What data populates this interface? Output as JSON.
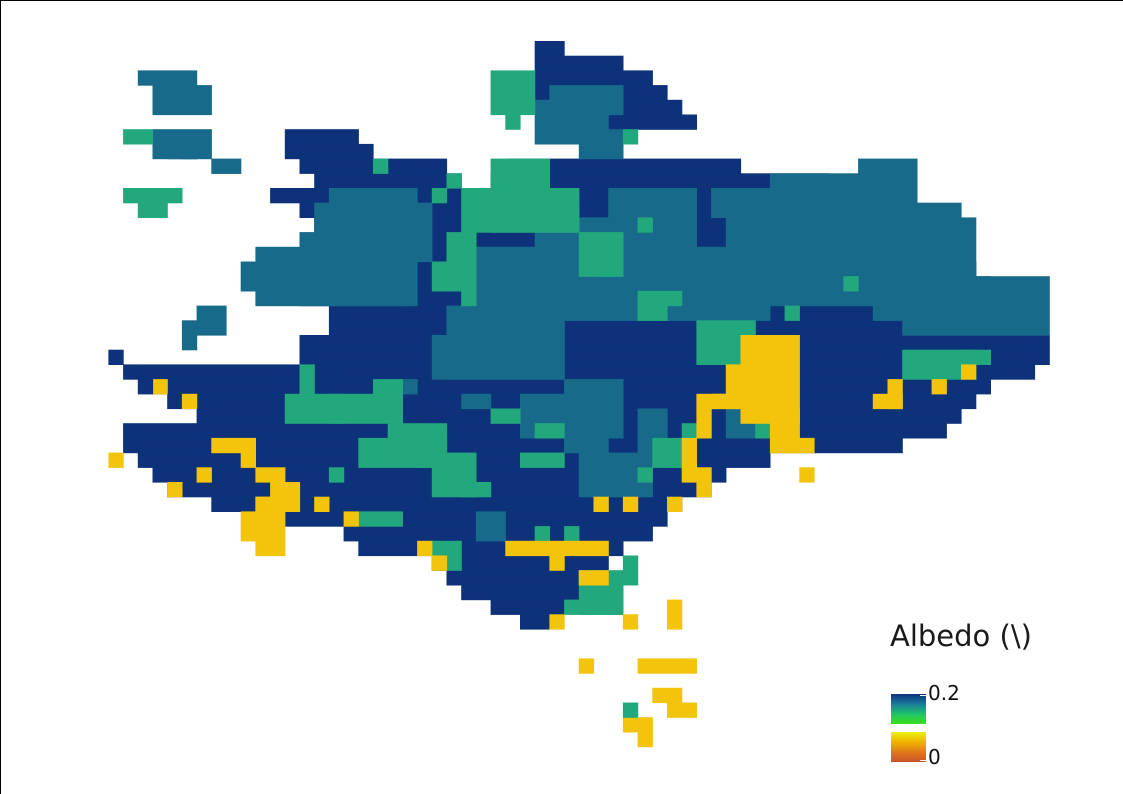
{
  "map": {
    "palette": {
      "dark": "#0d327a",
      "teal": "#176a8a",
      "green": "#22a87c",
      "yellow": "#f2c40c"
    }
  },
  "legend": {
    "title": "Albedo (\\)",
    "max_label": "0.2",
    "min_label": "0",
    "gradient_top": [
      "#0d327a",
      "#1a7a9a",
      "#1fc46a",
      "#38e01a"
    ],
    "gradient_bottom": [
      "#eaf20f",
      "#f0b400",
      "#e07a1a",
      "#c9542a"
    ]
  }
}
